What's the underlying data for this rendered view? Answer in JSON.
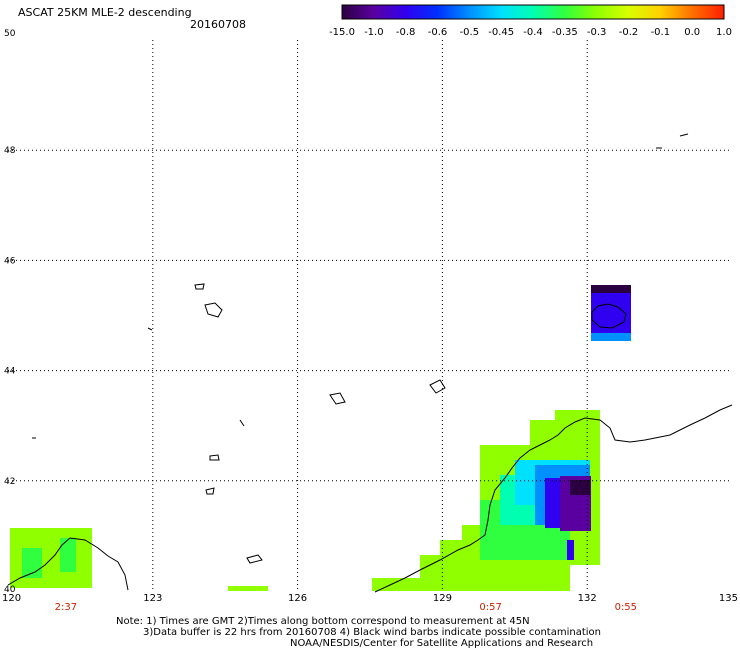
{
  "header": {
    "title": "ASCAT 25KM MLE-2 descending",
    "date": "20160708"
  },
  "colorbar": {
    "labels": [
      "-15.0",
      "-1.0",
      "-0.8",
      "-0.6",
      "-0.5",
      "-0.45",
      "-0.4",
      "-0.35",
      "-0.3",
      "-0.2",
      "-0.1",
      "0.0",
      "1.0"
    ],
    "colors": [
      "#2b0040",
      "#5a00a0",
      "#3000f0",
      "#0030ff",
      "#0090ff",
      "#00e0ff",
      "#00ffb0",
      "#30ff40",
      "#90ff00",
      "#d8ff00",
      "#ffd000",
      "#ff7000",
      "#ff1e00"
    ]
  },
  "axes": {
    "lon_ticks": [
      "120",
      "123",
      "126",
      "129",
      "132",
      "135"
    ],
    "lat_ticks": [
      "40",
      "42",
      "44",
      "46",
      "48",
      "50"
    ],
    "lon_range": [
      120,
      135
    ],
    "lat_range": [
      40,
      50
    ]
  },
  "times": [
    {
      "lon": 121.2,
      "label": "2:37"
    },
    {
      "lon": 130.0,
      "label": "0:57"
    },
    {
      "lon": 132.8,
      "label": "0:55"
    }
  ],
  "notes": {
    "line1": "Note: 1) Times are GMT 2)Times along bottom correspond to measurement at 45N",
    "line2": "3)Data buffer is 22 hrs from 20160708 4) Black wind barbs indicate possible contamination",
    "line3": "NOAA/NESDIS/Center for Satellite Applications and Research"
  }
}
